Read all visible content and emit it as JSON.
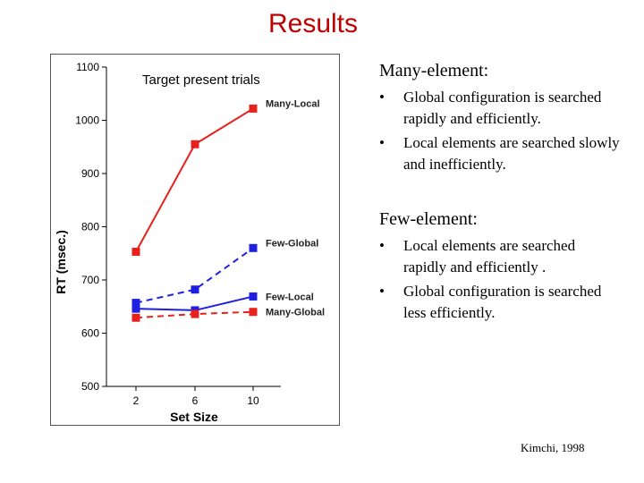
{
  "slide": {
    "title": "Results",
    "citation": "Kimchi, 1998"
  },
  "text_panel": {
    "section1": {
      "heading": "Many-element:",
      "bullets": [
        "Global configuration is searched rapidly and efficiently.",
        "Local elements are searched slowly and inefficiently."
      ]
    },
    "section2": {
      "heading": "Few-element:",
      "bullets": [
        "Local elements are searched rapidly and efficiently .",
        "Global configuration is searched less efficiently."
      ]
    },
    "bullet_glyph": "•"
  },
  "chart_data": {
    "type": "line",
    "title": "Target present trials",
    "xlabel": "Set Size",
    "ylabel": "RT (msec.)",
    "categories": [
      "2",
      "6",
      "10"
    ],
    "ylim": [
      500,
      1100
    ],
    "yticks": [
      500,
      600,
      700,
      800,
      900,
      1000,
      1100
    ],
    "grid": false,
    "series": [
      {
        "name": "Many-Local",
        "values": [
          753,
          955,
          1022
        ],
        "color": "#e8211d",
        "dash": false
      },
      {
        "name": "Few-Global",
        "values": [
          657,
          682,
          760
        ],
        "color": "#1f1fe0",
        "dash": true
      },
      {
        "name": "Few-Local",
        "values": [
          646,
          643,
          669
        ],
        "color": "#1f1fe0",
        "dash": false
      },
      {
        "name": "Many-Global",
        "values": [
          629,
          636,
          640
        ],
        "color": "#e8211d",
        "dash": true
      }
    ]
  }
}
